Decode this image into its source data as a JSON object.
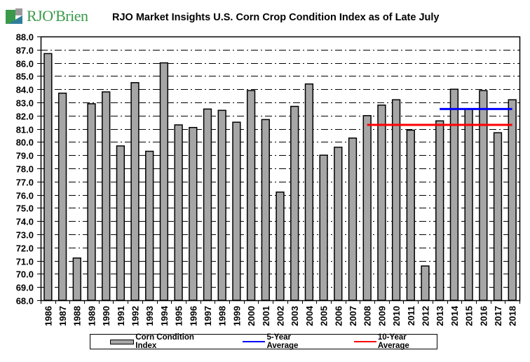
{
  "logo": {
    "text": "RJO'Brien",
    "icon": "rjo-brien-logo-icon"
  },
  "colors": {
    "bar": "#a6a6a6",
    "five_year": "#0000ff",
    "ten_year": "#ff0000",
    "logo_green": "#3a9a4a"
  },
  "chart_data": {
    "type": "bar",
    "title": "RJO Market Insights U.S. Corn Crop Condition Index as of Late July",
    "xlabel": "",
    "ylabel": "",
    "ylim": [
      68.0,
      88.0
    ],
    "ytick_step": 1.0,
    "yticks": [
      "88.0",
      "87.0",
      "86.0",
      "85.0",
      "84.0",
      "83.0",
      "82.0",
      "81.0",
      "80.0",
      "79.0",
      "78.0",
      "77.0",
      "76.0",
      "75.0",
      "74.0",
      "73.0",
      "72.0",
      "71.0",
      "70.0",
      "69.0",
      "68.0"
    ],
    "grid": true,
    "categories": [
      "1986",
      "1987",
      "1988",
      "1989",
      "1990",
      "1991",
      "1992",
      "1993",
      "1994",
      "1995",
      "1996",
      "1997",
      "1998",
      "1999",
      "2000",
      "2001",
      "2002",
      "2003",
      "2004",
      "2005",
      "2006",
      "2007",
      "2008",
      "2009",
      "2010",
      "2011",
      "2012",
      "2013",
      "2014",
      "2015",
      "2016",
      "2017",
      "2018"
    ],
    "series": [
      {
        "name": "Corn Condition Index",
        "type": "bar",
        "values": [
          86.7,
          83.7,
          71.2,
          82.9,
          83.8,
          79.7,
          84.5,
          79.3,
          86.0,
          81.3,
          81.1,
          82.5,
          82.4,
          81.5,
          83.9,
          81.7,
          76.2,
          82.7,
          84.4,
          79.0,
          79.6,
          80.3,
          82.0,
          82.8,
          83.2,
          80.9,
          70.6,
          81.6,
          84.0,
          82.5,
          83.9,
          80.7,
          83.2
        ]
      },
      {
        "name": "5-Year Average",
        "type": "line",
        "value": 82.5,
        "from": "2013",
        "to": "2018"
      },
      {
        "name": "10-Year Average",
        "type": "line",
        "value": 81.3,
        "from": "2008",
        "to": "2018"
      }
    ],
    "legend": {
      "placement": "bottom",
      "entries": [
        "Corn Condition Index",
        "5-Year Average",
        "10-Year Average"
      ]
    }
  }
}
